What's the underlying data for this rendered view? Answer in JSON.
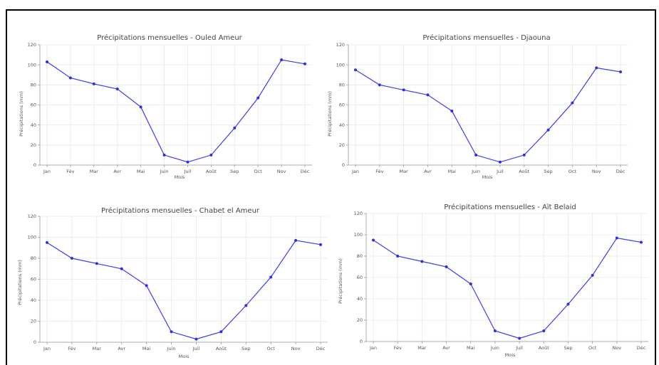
{
  "charts": [
    {
      "title": "Précipitations mensuelles - Ouled Ameur",
      "xlabel": "Mois",
      "ylabel": "Précipitations (mm)",
      "yticks": [
        "0",
        "20",
        "40",
        "60",
        "80",
        "100",
        "120"
      ],
      "months": [
        "Jan",
        "Fév",
        "Mar",
        "Avr",
        "Mai",
        "Juin",
        "Juil",
        "Août",
        "Sep",
        "Oct",
        "Nov",
        "Déc"
      ]
    },
    {
      "title": "Précipitations mensuelles - Djaouna",
      "xlabel": "Mois",
      "ylabel": "Précipitations (mm)",
      "yticks": [
        "0",
        "20",
        "40",
        "60",
        "80",
        "100",
        "120"
      ],
      "months": [
        "Jan",
        "Fév",
        "Mar",
        "Avr",
        "Mai",
        "Juin",
        "Juil",
        "Août",
        "Sep",
        "Oct",
        "Nov",
        "Déc"
      ]
    },
    {
      "title": "Précipitations mensuelles - Chabet el Ameur",
      "xlabel": "Mois",
      "ylabel": "Précipitations (mm)",
      "yticks": [
        "0",
        "20",
        "40",
        "60",
        "80",
        "100",
        "120"
      ],
      "months": [
        "Jan",
        "Fév",
        "Mar",
        "Avr",
        "Mai",
        "Juin",
        "Juil",
        "Août",
        "Sep",
        "Oct",
        "Nov",
        "Déc"
      ]
    },
    {
      "title": "Précipitations mensuelles - Aït Belaid",
      "xlabel": "Mois",
      "ylabel": "Précipitations (mm)",
      "yticks": [
        "0",
        "20",
        "40",
        "60",
        "80",
        "100",
        "120"
      ],
      "months": [
        "Jan",
        "Fév",
        "Mar",
        "Avr",
        "Mai",
        "Juin",
        "Juil",
        "Août",
        "Sep",
        "Oct",
        "Nov",
        "Déc"
      ]
    }
  ],
  "chart_data": [
    {
      "type": "line",
      "title": "Précipitations mensuelles - Ouled Ameur",
      "xlabel": "Mois",
      "ylabel": "Précipitations (mm)",
      "categories": [
        "Jan",
        "Fév",
        "Mar",
        "Avr",
        "Mai",
        "Juin",
        "Juil",
        "Août",
        "Sep",
        "Oct",
        "Nov",
        "Déc"
      ],
      "values": [
        103,
        87,
        81,
        76,
        58,
        10,
        3,
        10,
        37,
        67,
        105,
        101
      ],
      "ylim": [
        0,
        120
      ],
      "grid": true,
      "color": "#3b3bf0"
    },
    {
      "type": "line",
      "title": "Précipitations mensuelles - Djaouna",
      "xlabel": "Mois",
      "ylabel": "Précipitations (mm)",
      "categories": [
        "Jan",
        "Fév",
        "Mar",
        "Avr",
        "Mai",
        "Juin",
        "Juil",
        "Août",
        "Sep",
        "Oct",
        "Nov",
        "Déc"
      ],
      "values": [
        95,
        80,
        75,
        70,
        54,
        10,
        3,
        10,
        35,
        62,
        97,
        93
      ],
      "ylim": [
        0,
        120
      ],
      "grid": true,
      "color": "#3b3bf0"
    },
    {
      "type": "line",
      "title": "Précipitations mensuelles - Chabet el Ameur",
      "xlabel": "Mois",
      "ylabel": "Précipitations (mm)",
      "categories": [
        "Jan",
        "Fév",
        "Mar",
        "Avr",
        "Mai",
        "Juin",
        "Juil",
        "Août",
        "Sep",
        "Oct",
        "Nov",
        "Déc"
      ],
      "values": [
        95,
        80,
        75,
        70,
        54,
        10,
        3,
        10,
        35,
        62,
        97,
        93
      ],
      "ylim": [
        0,
        120
      ],
      "grid": true,
      "color": "#3b3bf0"
    },
    {
      "type": "line",
      "title": "Précipitations mensuelles - Aït Belaid",
      "xlabel": "Mois",
      "ylabel": "Précipitations (mm)",
      "categories": [
        "Jan",
        "Fév",
        "Mar",
        "Avr",
        "Mai",
        "Juin",
        "Juil",
        "Août",
        "Sep",
        "Oct",
        "Nov",
        "Déc"
      ],
      "values": [
        95,
        80,
        75,
        70,
        54,
        10,
        3,
        10,
        35,
        62,
        97,
        93
      ],
      "ylim": [
        0,
        120
      ],
      "grid": true,
      "color": "#3b3bf0"
    }
  ]
}
